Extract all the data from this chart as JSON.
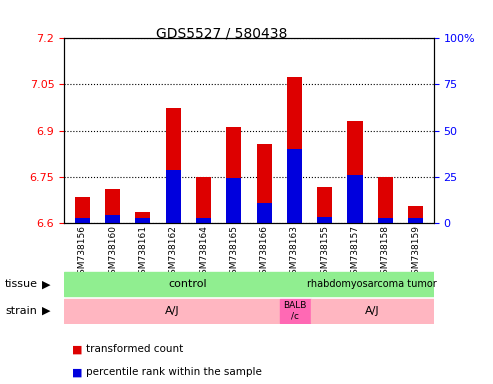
{
  "title": "GDS5527 / 580438",
  "samples": [
    "GSM738156",
    "GSM738160",
    "GSM738161",
    "GSM738162",
    "GSM738164",
    "GSM738165",
    "GSM738166",
    "GSM738163",
    "GSM738155",
    "GSM738157",
    "GSM738158",
    "GSM738159"
  ],
  "red_values": [
    6.685,
    6.71,
    6.635,
    6.975,
    6.75,
    6.91,
    6.855,
    7.075,
    6.715,
    6.93,
    6.75,
    6.655
  ],
  "blue_values": [
    6.615,
    6.625,
    6.615,
    6.77,
    6.615,
    6.745,
    6.665,
    6.84,
    6.62,
    6.755,
    6.615,
    6.615
  ],
  "y_min": 6.6,
  "y_max": 7.2,
  "y_ticks": [
    6.6,
    6.75,
    6.9,
    7.05,
    7.2
  ],
  "y_tick_labels": [
    "6.6",
    "6.75",
    "6.9",
    "7.05",
    "7.2"
  ],
  "right_y_ticks": [
    0,
    25,
    50,
    75,
    100
  ],
  "right_y_labels": [
    "0",
    "25",
    "50",
    "75",
    "100%"
  ],
  "tissue_groups": [
    {
      "label": "control",
      "start": 0,
      "end": 8,
      "color": "#90EE90"
    },
    {
      "label": "rhabdomyosarcoma tumor",
      "start": 8,
      "end": 12,
      "color": "#90EE90"
    }
  ],
  "strain_groups": [
    {
      "label": "A/J",
      "start": 0,
      "end": 7,
      "color": "#FFB6C1"
    },
    {
      "label": "BALB\n/c",
      "start": 7,
      "end": 8,
      "color": "#FF69B4"
    },
    {
      "label": "A/J",
      "start": 8,
      "end": 12,
      "color": "#FFB6C1"
    }
  ],
  "bar_color_red": "#DD0000",
  "bar_color_blue": "#0000DD",
  "bar_width": 0.5,
  "grid_color": "black",
  "grid_linestyle": "dotted",
  "bg_color": "#E8E8E8",
  "legend_items": [
    {
      "color": "#DD0000",
      "label": "transformed count"
    },
    {
      "color": "#0000DD",
      "label": "percentile rank within the sample"
    }
  ],
  "tissue_label": "tissue",
  "strain_label": "strain"
}
